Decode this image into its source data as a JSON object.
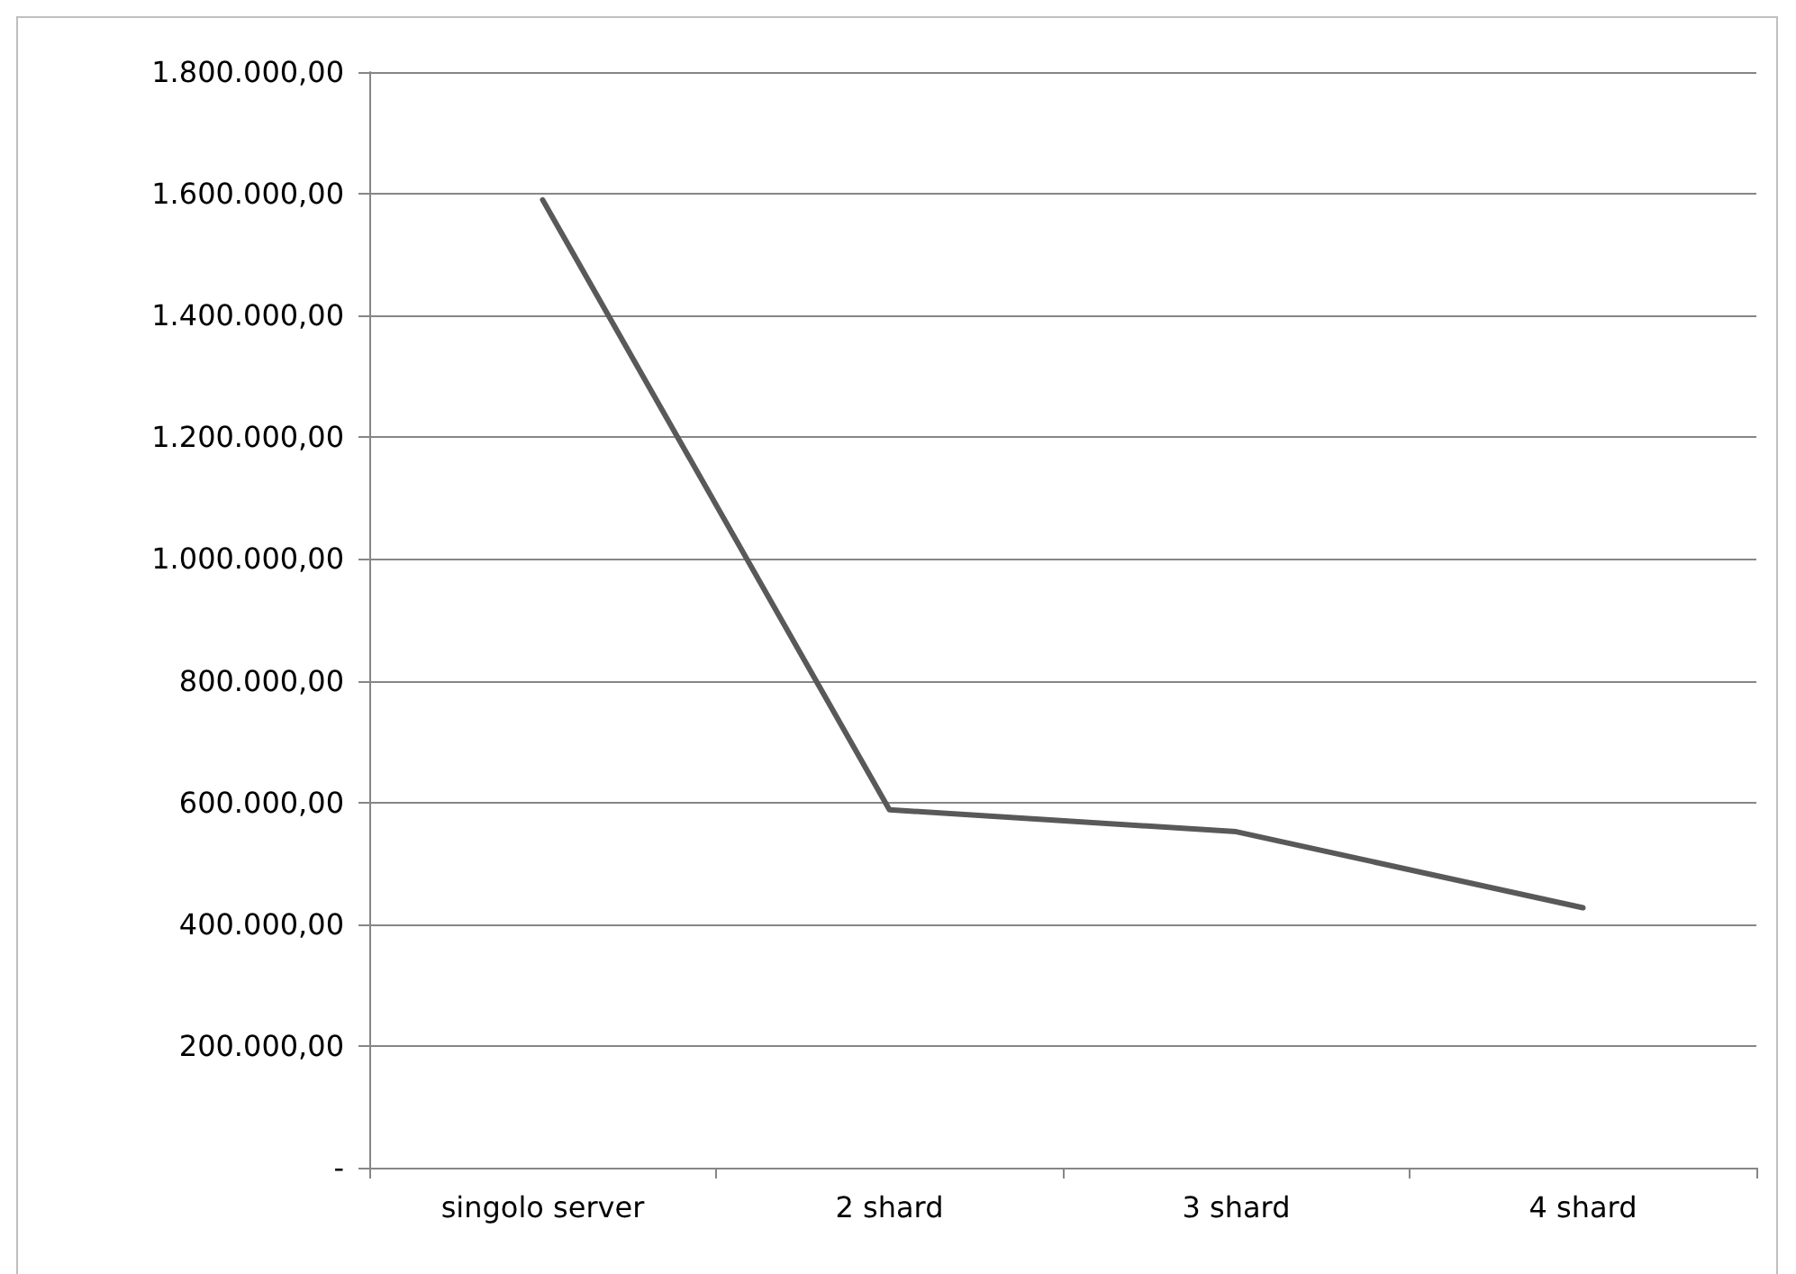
{
  "chart_data": {
    "type": "line",
    "categories": [
      "singolo server",
      "2 shard",
      "3 shard",
      "4 shard"
    ],
    "series": [
      {
        "color": "#595959",
        "values": [
          1590000,
          588000,
          552000,
          427000
        ]
      }
    ],
    "ylim": [
      0,
      1800000
    ],
    "yticks": [
      {
        "value": 0,
        "label": "-"
      },
      {
        "value": 200000,
        "label": "200.000,00"
      },
      {
        "value": 400000,
        "label": "400.000,00"
      },
      {
        "value": 600000,
        "label": "600.000,00"
      },
      {
        "value": 800000,
        "label": "800.000,00"
      },
      {
        "value": 1000000,
        "label": "1.000.000,00"
      },
      {
        "value": 1200000,
        "label": "1.200.000,00"
      },
      {
        "value": 1400000,
        "label": "1.400.000,00"
      },
      {
        "value": 1600000,
        "label": "1.600.000,00"
      },
      {
        "value": 1800000,
        "label": "1.800.000,00"
      }
    ],
    "grid": "y",
    "marker": "none",
    "line_style": "solid"
  }
}
